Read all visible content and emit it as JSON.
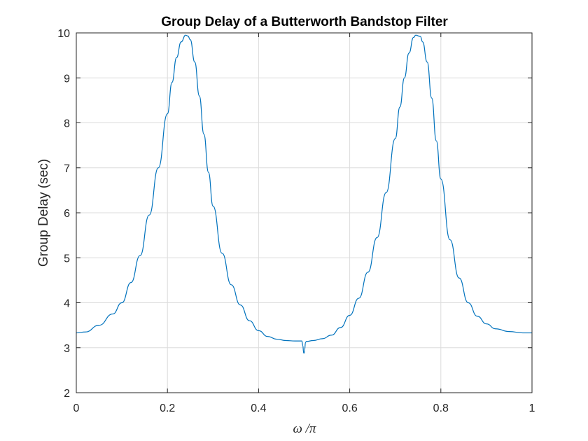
{
  "chart_data": {
    "type": "line",
    "title": "Group Delay of a Butterworth Bandstop Filter",
    "xlabel": "ω /π",
    "ylabel": "Group Delay (sec)",
    "xlim": [
      0,
      1
    ],
    "ylim": [
      2,
      10
    ],
    "xticks": [
      "0",
      "0.2",
      "0.4",
      "0.6",
      "0.8",
      "1"
    ],
    "yticks": [
      "2",
      "3",
      "4",
      "5",
      "6",
      "7",
      "8",
      "9",
      "10"
    ],
    "grid": true,
    "colors": {
      "line": "#0072BD",
      "grid": "#dcdcdc",
      "axes": "#262626"
    },
    "series": [
      {
        "x": [
          0,
          0.02,
          0.05,
          0.08,
          0.1,
          0.12,
          0.14,
          0.16,
          0.18,
          0.2,
          0.21,
          0.22,
          0.23,
          0.24,
          0.245,
          0.25,
          0.26,
          0.27,
          0.28,
          0.29,
          0.3,
          0.32,
          0.34,
          0.36,
          0.38,
          0.4,
          0.42,
          0.44,
          0.46,
          0.48,
          0.495,
          0.497,
          0.499,
          0.5,
          0.501,
          0.503,
          0.505,
          0.52,
          0.54,
          0.56,
          0.58,
          0.6,
          0.62,
          0.64,
          0.66,
          0.68,
          0.7,
          0.71,
          0.72,
          0.73,
          0.74,
          0.745,
          0.755,
          0.76,
          0.77,
          0.78,
          0.79,
          0.8,
          0.82,
          0.84,
          0.86,
          0.88,
          0.9,
          0.92,
          0.95,
          0.98,
          1
        ],
        "y": [
          3.33,
          3.35,
          3.5,
          3.75,
          4.0,
          4.45,
          5.05,
          5.95,
          7.0,
          8.2,
          8.9,
          9.45,
          9.8,
          9.95,
          9.93,
          9.85,
          9.35,
          8.6,
          7.75,
          6.9,
          6.15,
          5.1,
          4.4,
          3.95,
          3.6,
          3.38,
          3.25,
          3.19,
          3.16,
          3.15,
          3.15,
          3.05,
          2.88,
          2.88,
          2.95,
          3.12,
          3.14,
          3.16,
          3.2,
          3.28,
          3.45,
          3.72,
          4.1,
          4.68,
          5.45,
          6.45,
          7.65,
          8.35,
          9.0,
          9.55,
          9.9,
          9.95,
          9.92,
          9.8,
          9.35,
          8.55,
          7.6,
          6.75,
          5.4,
          4.55,
          4.0,
          3.7,
          3.53,
          3.42,
          3.36,
          3.33,
          3.33
        ]
      }
    ]
  }
}
